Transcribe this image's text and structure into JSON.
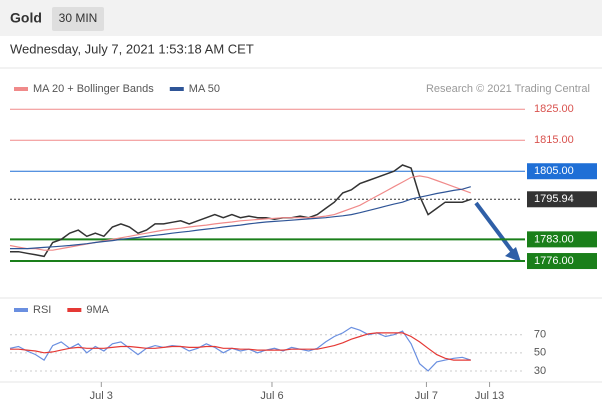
{
  "header": {
    "symbol": "Gold",
    "interval": "30 MIN",
    "date": "Wednesday, July 7, 2021 1:53:18 AM CET"
  },
  "chart_data": [
    {
      "type": "line",
      "credit": "Research © 2021 Trading Central",
      "xlim": [
        0,
        60
      ],
      "ylim": [
        1766,
        1828
      ],
      "series": [
        {
          "color": "#333333",
          "values": [
            1779,
            1779,
            1778.5,
            1778,
            1777.5,
            1782,
            1783,
            1785,
            1786,
            1784,
            1785,
            1784,
            1787,
            1788,
            1787,
            1785,
            1786,
            1788,
            1788,
            1788.5,
            1789,
            1788,
            1789,
            1790,
            1791,
            1790,
            1791,
            1790,
            1790.5,
            1790,
            1790,
            1789.5,
            1790,
            1790,
            1790.5,
            1790,
            1791,
            1793,
            1795,
            1798,
            1799,
            1801,
            1802,
            1803,
            1804,
            1805,
            1807,
            1806,
            1797,
            1791,
            1793,
            1795,
            1795,
            1795,
            1795.94
          ]
        },
        {
          "name": "MA 20 + Bollinger Bands",
          "color": "#f08a8a",
          "values": [
            1781,
            1780.5,
            1780,
            1780,
            1779.5,
            1779.5,
            1780,
            1780.5,
            1781,
            1781.5,
            1782,
            1782.5,
            1783,
            1783.5,
            1784,
            1784.5,
            1785,
            1785.5,
            1786,
            1786.3,
            1786.6,
            1787,
            1787.3,
            1787.6,
            1788,
            1788.3,
            1788.6,
            1789,
            1789.2,
            1789.4,
            1789.6,
            1789.8,
            1790,
            1790,
            1790,
            1790,
            1790.2,
            1790.5,
            1791,
            1792,
            1793,
            1794,
            1795.5,
            1797,
            1798.5,
            1800,
            1801.5,
            1803,
            1803.5,
            1803,
            1802,
            1801,
            1800,
            1799,
            1798
          ]
        },
        {
          "name": "MA 50",
          "color": "#2f5597",
          "values": [
            1780,
            1780,
            1780,
            1780.2,
            1780.4,
            1780.6,
            1780.8,
            1781,
            1781.3,
            1781.6,
            1782,
            1782.3,
            1782.6,
            1783,
            1783.3,
            1783.6,
            1784,
            1784.3,
            1784.6,
            1785,
            1785.3,
            1785.6,
            1786,
            1786.3,
            1786.6,
            1787,
            1787.3,
            1787.6,
            1788,
            1788.3,
            1788.6,
            1788.8,
            1789,
            1789.2,
            1789.4,
            1789.6,
            1789.8,
            1790,
            1790.3,
            1790.6,
            1791,
            1791.6,
            1792.3,
            1793,
            1793.7,
            1794.4,
            1795,
            1796,
            1796.6,
            1797.2,
            1797.8,
            1798.3,
            1798.8,
            1799.2,
            1800
          ]
        }
      ],
      "levels": [
        {
          "value": 1825,
          "label": "1825.00",
          "color": "#f08a8a"
        },
        {
          "value": 1815,
          "label": "1815.00",
          "color": "#f08a8a"
        },
        {
          "value": 1805,
          "label": "1805.00",
          "color": "#1f6fd6"
        },
        {
          "value": 1795.94,
          "label": "1795.94",
          "color": "#333333"
        },
        {
          "value": 1783,
          "label": "1783.00",
          "color": "#1a7f1a"
        },
        {
          "value": 1776,
          "label": "1776.00",
          "color": "#1a7f1a"
        }
      ]
    },
    {
      "type": "line",
      "xlim": [
        0,
        60
      ],
      "ylim": [
        20,
        84
      ],
      "yticks": [
        70,
        50,
        30
      ],
      "xticks": [
        {
          "value": 10.7,
          "label": "Jul 3"
        },
        {
          "value": 30.7,
          "label": "Jul 6"
        },
        {
          "value": 48.8,
          "label": "Jul 7"
        },
        {
          "value": 56.2,
          "label": "Jul 13"
        }
      ],
      "series": [
        {
          "name": "RSI",
          "color": "#6a8fe0",
          "values": [
            55,
            57,
            52,
            48,
            42,
            58,
            62,
            55,
            60,
            50,
            57,
            52,
            60,
            62,
            55,
            48,
            55,
            58,
            56,
            58,
            57,
            52,
            55,
            60,
            56,
            50,
            55,
            52,
            54,
            50,
            53,
            55,
            52,
            56,
            54,
            52,
            55,
            62,
            68,
            72,
            78,
            75,
            70,
            72,
            68,
            70,
            74,
            60,
            38,
            30,
            40,
            42,
            44,
            45,
            42
          ]
        },
        {
          "name": "9MA",
          "color": "#e53935",
          "values": [
            54,
            54,
            53,
            52,
            50,
            51,
            53,
            55,
            56,
            55,
            55,
            55,
            56,
            57,
            57,
            56,
            55,
            55,
            56,
            57,
            57,
            56,
            56,
            57,
            57,
            55,
            55,
            54,
            54,
            53,
            53,
            53,
            53,
            54,
            54,
            54,
            54,
            56,
            58,
            61,
            65,
            68,
            71,
            72,
            72,
            72,
            72,
            68,
            62,
            55,
            48,
            44,
            42,
            42,
            42
          ]
        }
      ]
    }
  ]
}
